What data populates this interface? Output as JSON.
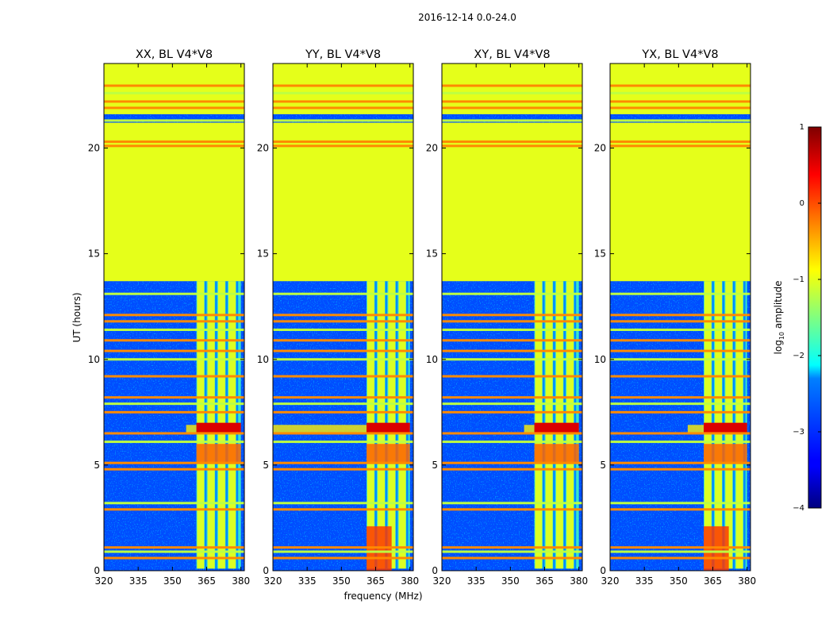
{
  "figure_title": "2016-12-14 0.0-24.0",
  "chart_data": {
    "type": "heatmap",
    "title": "2016-12-14 0.0-24.0",
    "xlabel": "frequency (MHz)",
    "ylabel": "UT (hours)",
    "xlim": [
      320,
      381.5
    ],
    "ylim": [
      0,
      24
    ],
    "x_ticks": [
      "320",
      "335",
      "350",
      "365",
      "380"
    ],
    "x_tick_values": [
      320,
      335,
      350,
      365,
      380
    ],
    "y_ticks": [
      "0",
      "5",
      "10",
      "15",
      "20"
    ],
    "y_tick_values": [
      0,
      5,
      10,
      15,
      20
    ],
    "panels": [
      {
        "id": "XX",
        "title": "XX, BL V4*V8",
        "band_start_mhz": 360.5,
        "fringe_start_mhz": 356,
        "flare_y": [
          0,
          0
        ]
      },
      {
        "id": "YY",
        "title": "YY, BL V4*V8",
        "band_start_mhz": 361,
        "fringe_start_mhz": 320,
        "flare_y": [
          0,
          2.1
        ]
      },
      {
        "id": "XY",
        "title": "XY, BL V4*V8",
        "band_start_mhz": 360.5,
        "fringe_start_mhz": 356,
        "flare_y": [
          0,
          0
        ]
      },
      {
        "id": "YX",
        "title": "YX, BL V4*V8",
        "band_start_mhz": 361,
        "fringe_start_mhz": 354,
        "flare_y": [
          0,
          2.1
        ]
      }
    ],
    "flagged_uniform_value": -1,
    "flagged_time_ranges_hours": [
      [
        13.7,
        21.2
      ],
      [
        21.6,
        24
      ]
    ],
    "rfi_time_lines_hours": [
      0.6,
      0.9,
      1.1,
      2.9,
      3.2,
      4.8,
      5.1,
      6.1,
      6.5,
      7.5,
      7.9,
      8.2,
      9.2,
      10.0,
      10.4,
      10.9,
      11.4,
      11.8,
      12.1,
      13.1,
      20.1,
      20.3,
      21.3,
      21.9,
      22.2,
      22.6,
      22.95
    ],
    "background_value_log10": -3,
    "colorbar": {
      "label": "log10 amplitude",
      "label_main": "log",
      "label_sub": "10",
      "label_tail": " amplitude",
      "min": -4,
      "max": 1,
      "ticks": [
        "1",
        "0",
        "−1",
        "−2",
        "−3",
        "−4"
      ],
      "tick_values": [
        1,
        0,
        -1,
        -2,
        -3,
        -4
      ],
      "colormap": "jet"
    }
  }
}
